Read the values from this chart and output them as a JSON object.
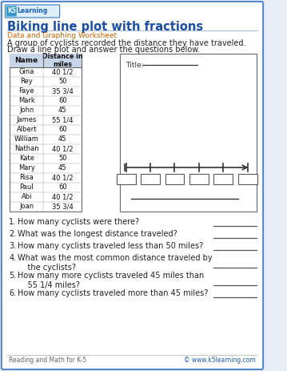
{
  "title": "Biking line plot with fractions",
  "subtitle": "Data and Graphing Worksheet",
  "intro_line1": "A group of cyclists recorded the distance they have traveled.",
  "intro_line2": "Draw a line plot and answer the questions below.",
  "table_headers": [
    "Name",
    "Distance in\nmiles"
  ],
  "table_data": [
    [
      "Gina",
      "40 1/2"
    ],
    [
      "Rey",
      "50"
    ],
    [
      "Faye",
      "35 3/4"
    ],
    [
      "Mark",
      "60"
    ],
    [
      "John",
      "45"
    ],
    [
      "James",
      "55 1/4"
    ],
    [
      "Albert",
      "60"
    ],
    [
      "William",
      "45"
    ],
    [
      "Nathan",
      "40 1/2"
    ],
    [
      "Kate",
      "50"
    ],
    [
      "Mary",
      "45"
    ],
    [
      "Risa",
      "40 1/2"
    ],
    [
      "Paul",
      "60"
    ],
    [
      "Abi",
      "40 1/2"
    ],
    [
      "Joan",
      "35 3/4"
    ]
  ],
  "questions": [
    [
      "1.",
      "How many cyclists were there?",
      false
    ],
    [
      "2.",
      "What was the longest distance traveled?",
      false
    ],
    [
      "3.",
      "How many cyclists traveled less than 50 miles?",
      false
    ],
    [
      "4.",
      "What was the most common distance traveled by\n    the cyclists?",
      true
    ],
    [
      "5.",
      "How many more cyclists traveled 45 miles than\n    55 1/4 miles?",
      true
    ],
    [
      "6.",
      "How many cyclists traveled more than 45 miles?",
      false
    ]
  ],
  "footer_left": "Reading and Math for K-5",
  "footer_right": "© www.k5learning.com",
  "bg_color": "#e8eef5",
  "border_color": "#5588cc",
  "title_color": "#1a4ea0",
  "subtitle_color": "#cc6600",
  "table_header_bg": "#c8d4e8",
  "n_ticks": 6
}
